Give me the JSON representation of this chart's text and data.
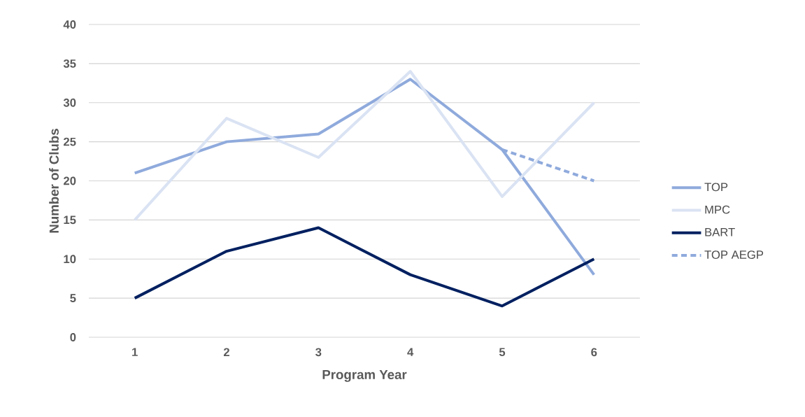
{
  "chart_data": {
    "type": "line",
    "xlabel": "Program Year",
    "ylabel": "Number of Clubs",
    "categories": [
      "1",
      "2",
      "3",
      "4",
      "5",
      "6"
    ],
    "series": [
      {
        "name": "TOP",
        "color": "#8faadc",
        "values": [
          21,
          25,
          26,
          33,
          24,
          8
        ]
      },
      {
        "name": "MPC",
        "color": "#dae3f3",
        "values": [
          15,
          28,
          23,
          34,
          18,
          30
        ]
      },
      {
        "name": "BART",
        "color": "#002060",
        "values": [
          5,
          11,
          14,
          8,
          4,
          10
        ]
      },
      {
        "name": "TOP AEGP",
        "color": "#8faadc",
        "line_style": "dashed",
        "values": [
          null,
          null,
          null,
          null,
          24,
          20
        ]
      }
    ],
    "ylim": [
      0,
      40
    ],
    "yticks": [
      0,
      5,
      10,
      15,
      20,
      25,
      30,
      35,
      40
    ],
    "grid": "y",
    "legend": "right"
  }
}
